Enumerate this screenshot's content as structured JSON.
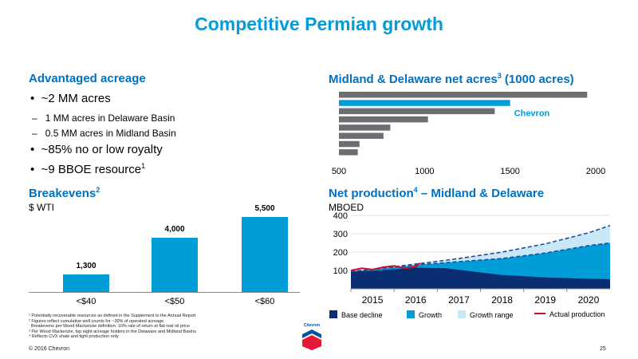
{
  "title": "Competitive Permian growth",
  "acreage": {
    "heading": "Advantaged acreage",
    "bullets": [
      "~2 MM acres",
      "~85% no or low royalty",
      "~9 BBOE resource"
    ],
    "bullet_sup": "1",
    "sub_bullets": [
      "1 MM acres in Delaware Basin",
      "0.5 MM acres in Midland Basin"
    ],
    "dash": "–",
    "bullet_char": "•"
  },
  "breakevens": {
    "heading": "Breakevens",
    "heading_sup": "2",
    "unit": "$ WTI"
  },
  "net_acres": {
    "heading": "Midland & Delaware net acres",
    "heading_sup": "3",
    "heading_suffix": " (1000 acres)"
  },
  "production": {
    "heading": "Net production",
    "heading_sup": "4",
    "heading_suffix": " – Midland & Delaware",
    "unit": "MBOED",
    "legend": [
      "Base decline",
      "Growth",
      "Growth range",
      "Actual production"
    ]
  },
  "footnotes": [
    "¹ Potentially recoverable resources as defined in the Supplement to the Annual Report",
    "² Figures reflect cumulative well counts for ~30% of operated acreage",
    "  Breakevens per Wood Mackenzie definition: 10% rate of return at flat real oil price",
    "³ Per Wood Mackenzie, top eight acreage holders in the Delaware and Midland Basins",
    "⁴ Reflects CVX shale and tight production only"
  ],
  "copyright": "© 2016 Chevron",
  "page_number": "25",
  "colors": {
    "title": "#009dd9",
    "heading": "#0070c0",
    "bar_blue": "#009dd9",
    "bar_gray": "#6d6e71",
    "base_decline": "#0b2d72",
    "growth": "#009dd9",
    "growth_range": "#c9e8f7",
    "actual": "#c8102e"
  },
  "chart_data": [
    {
      "type": "bar",
      "title": "Breakevens",
      "ylabel": "$ WTI",
      "categories": [
        "<$40",
        "<$50",
        "<$60"
      ],
      "values": [
        1300,
        4000,
        5500
      ],
      "value_labels": [
        "1,300",
        "4,000",
        "5,500"
      ],
      "ylim": [
        0,
        5500
      ]
    },
    {
      "type": "bar",
      "orientation": "horizontal",
      "title": "Midland & Delaware net acres (1000 acres)",
      "xlim": [
        500,
        2000
      ],
      "xticks": [
        "500",
        "1000",
        "1500",
        "2000"
      ],
      "values": [
        1950,
        1500,
        1410,
        1020,
        800,
        760,
        620,
        610
      ],
      "highlight": {
        "index": 1,
        "label": "Chevron"
      }
    },
    {
      "type": "area",
      "title": "Net production – Midland & Delaware",
      "ylabel": "MBOED",
      "ylim": [
        0,
        400
      ],
      "yticks": [
        "100",
        "200",
        "300",
        "400"
      ],
      "xticks": [
        "2015",
        "2016",
        "2017",
        "2018",
        "2019",
        "2020"
      ],
      "series": [
        {
          "name": "Base decline",
          "x": [
            2014.5,
            2015,
            2016,
            2016.7,
            2018,
            2019,
            2020,
            2020.5
          ],
          "values": [
            95,
            98,
            115,
            112,
            75,
            62,
            55,
            52
          ]
        },
        {
          "name": "Growth",
          "x": [
            2014.5,
            2015,
            2016,
            2017,
            2018,
            2019,
            2020,
            2020.5
          ],
          "values": [
            95,
            105,
            130,
            148,
            165,
            195,
            235,
            250
          ]
        },
        {
          "name": "Growth range",
          "x": [
            2014.5,
            2015,
            2016,
            2017,
            2018,
            2019,
            2020,
            2020.5
          ],
          "values": [
            95,
            105,
            135,
            165,
            200,
            245,
            305,
            345
          ]
        },
        {
          "name": "Actual production",
          "x": [
            2014.5,
            2014.75,
            2015,
            2015.25,
            2015.5,
            2015.75,
            2016,
            2016.1
          ],
          "values": [
            100,
            112,
            105,
            118,
            125,
            112,
            120,
            140
          ]
        }
      ]
    }
  ]
}
